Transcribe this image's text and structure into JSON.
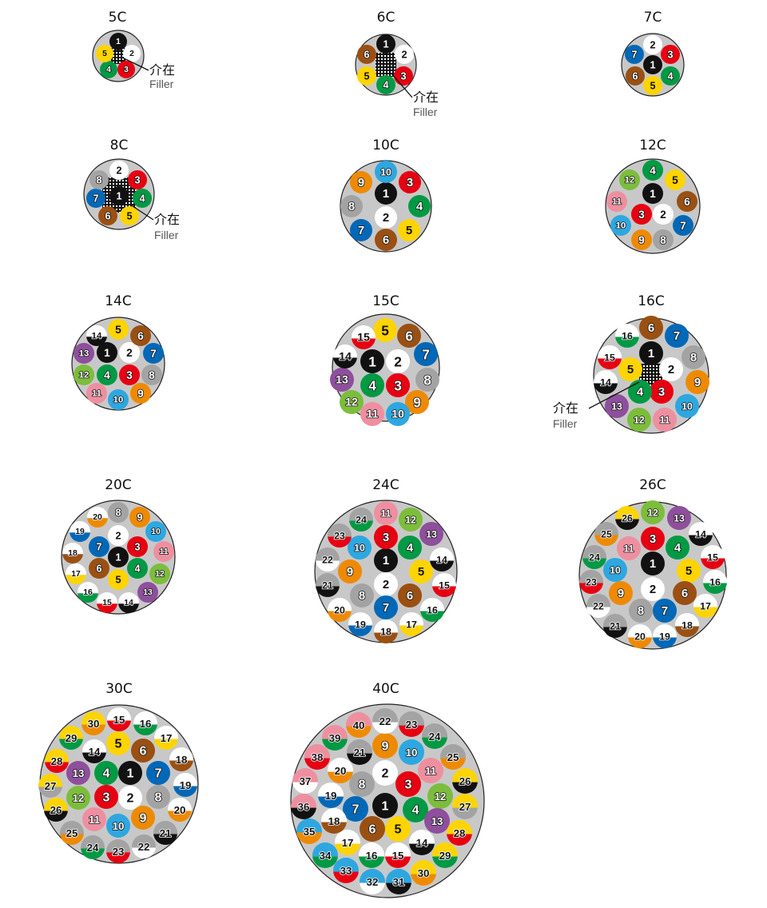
{
  "colors": {
    "black": "#111111",
    "white": "#ffffff",
    "red": "#e60012",
    "green": "#009944",
    "yellow": "#ffd400",
    "brown": "#9a5012",
    "blue": "#0068b7",
    "gray": "#a3a3a3",
    "orange": "#ee8a00",
    "lightblue": "#2ea7e0",
    "pink": "#ee8fa0",
    "lightgreen": "#7cbd3c",
    "purple": "#8e4f9c",
    "sheath": "#c8c8c8",
    "outline": "#222222"
  },
  "conductor_colors": {
    "1": [
      "black"
    ],
    "2": [
      "white"
    ],
    "3": [
      "red"
    ],
    "4": [
      "green"
    ],
    "5": [
      "yellow"
    ],
    "6": [
      "brown"
    ],
    "7": [
      "blue"
    ],
    "8": [
      "gray"
    ],
    "9": [
      "orange"
    ],
    "10": [
      "lightblue"
    ],
    "11": [
      "pink"
    ],
    "12": [
      "lightgreen"
    ],
    "13": [
      "purple"
    ],
    "14": [
      "white",
      "black"
    ],
    "15": [
      "white",
      "red"
    ],
    "16": [
      "white",
      "green"
    ],
    "17": [
      "white",
      "yellow"
    ],
    "18": [
      "white",
      "brown"
    ],
    "19": [
      "white",
      "blue"
    ],
    "20": [
      "white",
      "orange"
    ],
    "21": [
      "gray",
      "black"
    ],
    "22": [
      "gray",
      "white"
    ],
    "23": [
      "gray",
      "red"
    ],
    "24": [
      "gray",
      "green"
    ],
    "25": [
      "gray",
      "orange"
    ],
    "26": [
      "yellow",
      "black"
    ],
    "27": [
      "yellow",
      "gray"
    ],
    "28": [
      "yellow",
      "red"
    ],
    "29": [
      "yellow",
      "green"
    ],
    "30": [
      "yellow",
      "orange"
    ],
    "31": [
      "lightblue",
      "black"
    ],
    "32": [
      "lightblue",
      "white"
    ],
    "33": [
      "lightblue",
      "red"
    ],
    "34": [
      "lightblue",
      "green"
    ],
    "35": [
      "lightblue",
      "orange"
    ],
    "36": [
      "pink",
      "black"
    ],
    "37": [
      "pink",
      "white"
    ],
    "38": [
      "pink",
      "red"
    ],
    "39": [
      "pink",
      "green"
    ],
    "40": [
      "pink",
      "orange"
    ]
  },
  "filler": {
    "jp": "介在",
    "en": "Filler"
  },
  "cables": [
    {
      "label": "5C",
      "cores": 5,
      "filler": true
    },
    {
      "label": "6C",
      "cores": 6,
      "filler": true
    },
    {
      "label": "7C",
      "cores": 7,
      "filler": false
    },
    {
      "label": "8C",
      "cores": 8,
      "filler": true
    },
    {
      "label": "10C",
      "cores": 10,
      "filler": false
    },
    {
      "label": "12C",
      "cores": 12,
      "filler": false
    },
    {
      "label": "14C",
      "cores": 14,
      "filler": false
    },
    {
      "label": "15C",
      "cores": 15,
      "filler": false
    },
    {
      "label": "16C",
      "cores": 16,
      "filler": true
    },
    {
      "label": "20C",
      "cores": 20,
      "filler": false
    },
    {
      "label": "24C",
      "cores": 24,
      "filler": false
    },
    {
      "label": "26C",
      "cores": 26,
      "filler": false
    },
    {
      "label": "30C",
      "cores": 30,
      "filler": false
    },
    {
      "label": "40C",
      "cores": 40,
      "filler": false
    }
  ]
}
